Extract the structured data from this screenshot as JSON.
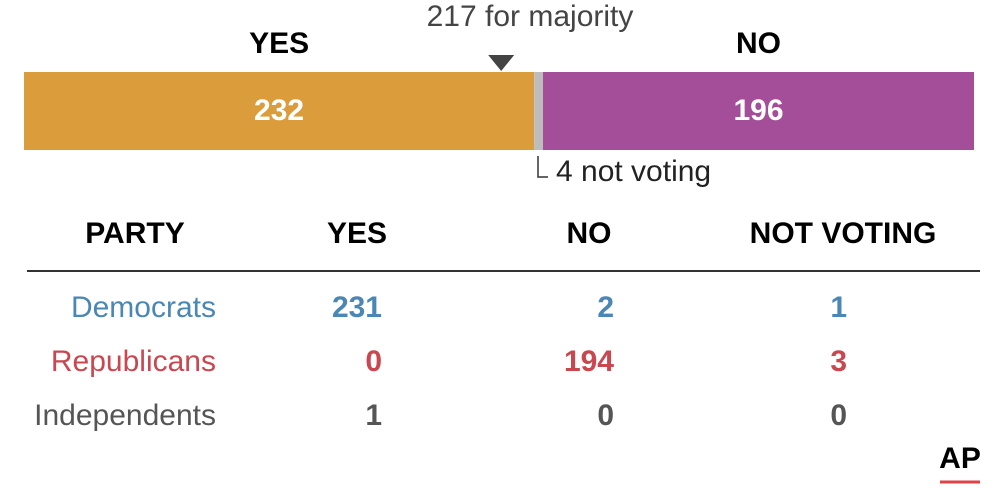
{
  "chart_data": {
    "type": "vote-bar",
    "segments": [
      {
        "label": "YES",
        "value": 232,
        "color": "#db9d3b"
      },
      {
        "value": 4,
        "value_label": "4 not voting",
        "color": "#bdbdbd"
      },
      {
        "label": "NO",
        "value": 196,
        "color": "#a44d98"
      }
    ],
    "majority": {
      "value": 217,
      "label": "217 for majority"
    }
  },
  "table": {
    "header": [
      "PARTY",
      "YES",
      "NO",
      "NOT VOTING"
    ],
    "rows": [
      [
        "Democrats",
        231,
        2,
        1
      ],
      [
        "Republicans",
        0,
        194,
        3
      ],
      [
        "Independents",
        1,
        0,
        0
      ]
    ],
    "row_colors": [
      "#4a87b5",
      "#c9474f",
      "#555555"
    ]
  },
  "logo": "AP"
}
